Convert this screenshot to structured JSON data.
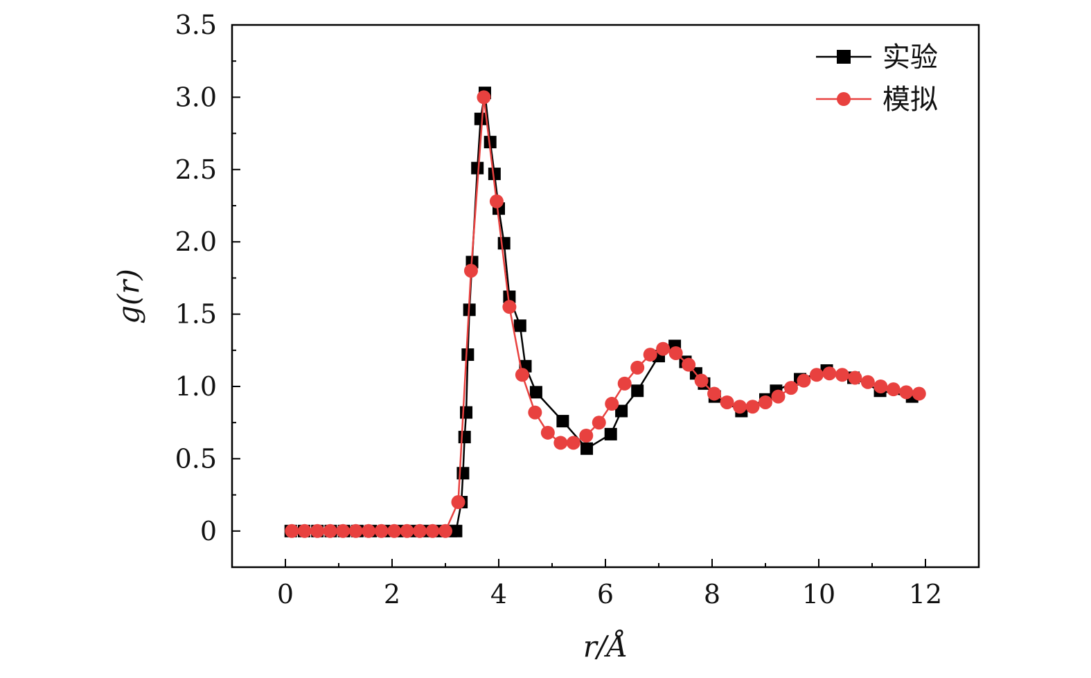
{
  "chart_data": {
    "type": "line",
    "title": "",
    "xlabel": "r/Å",
    "ylabel": "g(r)",
    "xlim": [
      -1,
      13
    ],
    "ylim": [
      -0.25,
      3.5
    ],
    "xticks": [
      0,
      2,
      4,
      6,
      8,
      10,
      12
    ],
    "xtick_labels": [
      "0",
      "2",
      "4",
      "6",
      "8",
      "10",
      "12"
    ],
    "yticks": [
      0,
      0.5,
      1.0,
      1.5,
      2.0,
      2.5,
      3.0,
      3.5
    ],
    "ytick_labels": [
      "0",
      "0.5",
      "1.0",
      "1.5",
      "2.0",
      "2.5",
      "3.0",
      "3.5"
    ],
    "grid": false,
    "legend_position": "top-right",
    "series": [
      {
        "name": "实验",
        "marker": "square",
        "color": "#000000",
        "x": [
          0.1,
          0.35,
          0.6,
          0.85,
          1.1,
          1.35,
          1.6,
          1.85,
          2.1,
          2.35,
          2.6,
          2.85,
          3.1,
          3.2,
          3.3,
          3.33,
          3.36,
          3.39,
          3.42,
          3.45,
          3.5,
          3.6,
          3.66,
          3.74,
          3.84,
          3.92,
          4.0,
          4.1,
          4.2,
          4.4,
          4.5,
          4.7,
          5.2,
          5.65,
          6.1,
          6.3,
          6.6,
          7.0,
          7.3,
          7.5,
          7.7,
          7.85,
          8.05,
          8.55,
          9.0,
          9.2,
          9.65,
          10.15,
          10.65,
          11.15,
          11.75
        ],
        "y": [
          0,
          0,
          0,
          0,
          0,
          0,
          0,
          0,
          0,
          0,
          0,
          0,
          0,
          0,
          0.2,
          0.4,
          0.65,
          0.82,
          1.22,
          1.53,
          1.86,
          2.51,
          2.85,
          3.03,
          2.69,
          2.47,
          2.23,
          1.99,
          1.62,
          1.42,
          1.14,
          0.96,
          0.76,
          0.57,
          0.67,
          0.83,
          0.97,
          1.21,
          1.28,
          1.17,
          1.09,
          1.02,
          0.93,
          0.83,
          0.91,
          0.97,
          1.05,
          1.11,
          1.06,
          0.97,
          0.93
        ]
      },
      {
        "name": "模拟",
        "marker": "circle",
        "color": "#e8413f",
        "x": [
          0.12,
          0.36,
          0.6,
          0.84,
          1.08,
          1.32,
          1.56,
          1.8,
          2.04,
          2.28,
          2.52,
          2.76,
          3.0,
          3.24,
          3.48,
          3.72,
          3.96,
          4.2,
          4.44,
          4.68,
          4.92,
          5.16,
          5.4,
          5.64,
          5.88,
          6.12,
          6.36,
          6.6,
          6.84,
          7.08,
          7.32,
          7.56,
          7.8,
          8.04,
          8.28,
          8.52,
          8.76,
          9.0,
          9.24,
          9.48,
          9.72,
          9.96,
          10.2,
          10.44,
          10.68,
          10.92,
          11.16,
          11.4,
          11.64,
          11.88
        ],
        "y": [
          0,
          0,
          0,
          0,
          0,
          0,
          0,
          0,
          0,
          0,
          0,
          0,
          0,
          0.2,
          1.8,
          3.0,
          2.28,
          1.55,
          1.08,
          0.82,
          0.68,
          0.61,
          0.61,
          0.66,
          0.75,
          0.88,
          1.02,
          1.13,
          1.22,
          1.26,
          1.23,
          1.15,
          1.04,
          0.95,
          0.89,
          0.86,
          0.86,
          0.89,
          0.93,
          0.99,
          1.04,
          1.08,
          1.09,
          1.08,
          1.06,
          1.03,
          1.0,
          0.98,
          0.96,
          0.95
        ]
      }
    ]
  }
}
